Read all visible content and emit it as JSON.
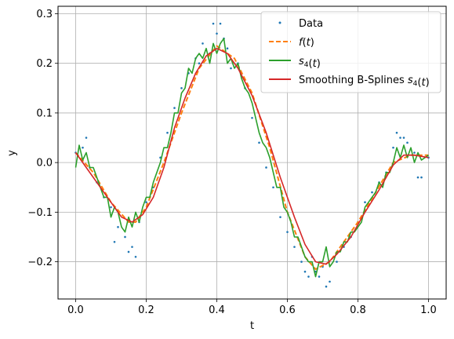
{
  "chart_data": {
    "type": "line",
    "xlabel": "t",
    "ylabel": "y",
    "xlim": [
      -0.05,
      1.05
    ],
    "ylim": [
      -0.275,
      0.315
    ],
    "grid": true,
    "legend_position": "top-right",
    "xticks": [
      0.0,
      0.2,
      0.4,
      0.6,
      0.8,
      1.0
    ],
    "xtick_labels": [
      "0.0",
      "0.2",
      "0.4",
      "0.6",
      "0.8",
      "1.0"
    ],
    "yticks": [
      -0.2,
      -0.1,
      0.0,
      0.1,
      0.2,
      0.3
    ],
    "ytick_labels": [
      "−0.2",
      "−0.1",
      "0.0",
      "0.1",
      "0.2",
      "0.3"
    ],
    "series": [
      {
        "name": "Data",
        "style": "points",
        "color": "#1f77b4",
        "x": [
          0.0,
          0.02,
          0.04,
          0.06,
          0.08,
          0.1,
          0.12,
          0.14,
          0.16,
          0.18,
          0.2,
          0.22,
          0.24,
          0.26,
          0.28,
          0.3,
          0.32,
          0.34,
          0.36,
          0.38,
          0.4,
          0.42,
          0.44,
          0.46,
          0.48,
          0.5,
          0.52,
          0.54,
          0.56,
          0.58,
          0.6,
          0.62,
          0.64,
          0.66,
          0.68,
          0.7,
          0.72,
          0.74,
          0.76,
          0.78,
          0.8,
          0.82,
          0.84,
          0.86,
          0.88,
          0.9,
          0.92,
          0.94,
          0.96,
          0.98,
          1.0,
          0.03,
          0.11,
          0.15,
          0.17,
          0.35,
          0.39,
          0.41,
          0.43,
          0.65,
          0.67,
          0.69,
          0.71,
          0.91,
          0.93,
          0.97
        ],
        "y": [
          0.02,
          0.03,
          -0.01,
          -0.04,
          -0.07,
          -0.09,
          -0.13,
          -0.15,
          -0.17,
          -0.12,
          -0.08,
          -0.05,
          0.01,
          0.06,
          0.11,
          0.15,
          0.18,
          0.21,
          0.24,
          0.22,
          0.26,
          0.25,
          0.19,
          0.2,
          0.15,
          0.09,
          0.04,
          -0.01,
          -0.05,
          -0.11,
          -0.14,
          -0.17,
          -0.2,
          -0.23,
          -0.22,
          -0.21,
          -0.24,
          -0.2,
          -0.17,
          -0.15,
          -0.12,
          -0.08,
          -0.06,
          -0.04,
          -0.02,
          0.03,
          0.05,
          0.04,
          0.02,
          -0.03,
          0.01,
          0.05,
          -0.16,
          -0.18,
          -0.19,
          0.2,
          0.28,
          0.28,
          0.23,
          -0.22,
          -0.19,
          -0.23,
          -0.25,
          0.06,
          0.05,
          -0.03
        ]
      },
      {
        "name": "$f(t)$",
        "style": "dashed",
        "color": "#ff7f0e",
        "x": [
          0.0,
          0.05,
          0.1,
          0.15,
          0.17,
          0.2,
          0.25,
          0.3,
          0.35,
          0.4,
          0.45,
          0.5,
          0.55,
          0.6,
          0.65,
          0.68,
          0.72,
          0.75,
          0.8,
          0.85,
          0.9,
          0.95,
          1.0
        ],
        "y": [
          0.02,
          -0.02,
          -0.08,
          -0.12,
          -0.12,
          -0.09,
          0.0,
          0.1,
          0.19,
          0.235,
          0.21,
          0.14,
          0.03,
          -0.1,
          -0.19,
          -0.215,
          -0.2,
          -0.17,
          -0.12,
          -0.06,
          0.0,
          0.015,
          0.015
        ]
      },
      {
        "name": "$s_4(t)$",
        "style": "solid",
        "color": "#2ca02c",
        "x": [
          0.0,
          0.01,
          0.02,
          0.03,
          0.04,
          0.05,
          0.06,
          0.07,
          0.08,
          0.09,
          0.1,
          0.11,
          0.12,
          0.13,
          0.14,
          0.15,
          0.16,
          0.17,
          0.18,
          0.19,
          0.2,
          0.21,
          0.22,
          0.23,
          0.24,
          0.25,
          0.26,
          0.27,
          0.28,
          0.29,
          0.3,
          0.31,
          0.32,
          0.33,
          0.34,
          0.35,
          0.36,
          0.37,
          0.38,
          0.39,
          0.4,
          0.41,
          0.42,
          0.43,
          0.44,
          0.45,
          0.46,
          0.47,
          0.48,
          0.49,
          0.5,
          0.51,
          0.52,
          0.53,
          0.54,
          0.55,
          0.56,
          0.57,
          0.58,
          0.59,
          0.6,
          0.61,
          0.62,
          0.63,
          0.64,
          0.65,
          0.66,
          0.67,
          0.68,
          0.69,
          0.7,
          0.71,
          0.72,
          0.73,
          0.74,
          0.75,
          0.76,
          0.77,
          0.78,
          0.79,
          0.8,
          0.81,
          0.82,
          0.83,
          0.84,
          0.85,
          0.86,
          0.87,
          0.88,
          0.89,
          0.9,
          0.91,
          0.92,
          0.93,
          0.94,
          0.95,
          0.96,
          0.97,
          0.98,
          0.99,
          1.0
        ],
        "y": [
          -0.01,
          0.035,
          0.005,
          0.02,
          -0.01,
          -0.01,
          -0.03,
          -0.05,
          -0.07,
          -0.07,
          -0.11,
          -0.09,
          -0.1,
          -0.13,
          -0.14,
          -0.11,
          -0.13,
          -0.1,
          -0.12,
          -0.09,
          -0.07,
          -0.07,
          -0.04,
          -0.02,
          0.0,
          0.03,
          0.03,
          0.06,
          0.1,
          0.1,
          0.14,
          0.15,
          0.19,
          0.18,
          0.21,
          0.22,
          0.21,
          0.23,
          0.2,
          0.24,
          0.22,
          0.24,
          0.25,
          0.2,
          0.21,
          0.19,
          0.2,
          0.17,
          0.15,
          0.14,
          0.12,
          0.09,
          0.06,
          0.04,
          0.03,
          0.01,
          -0.02,
          -0.05,
          -0.05,
          -0.09,
          -0.1,
          -0.12,
          -0.15,
          -0.15,
          -0.17,
          -0.19,
          -0.2,
          -0.2,
          -0.23,
          -0.2,
          -0.2,
          -0.17,
          -0.21,
          -0.2,
          -0.18,
          -0.18,
          -0.16,
          -0.16,
          -0.14,
          -0.14,
          -0.13,
          -0.12,
          -0.09,
          -0.08,
          -0.07,
          -0.06,
          -0.04,
          -0.05,
          -0.02,
          -0.02,
          0.0,
          0.03,
          0.01,
          0.035,
          0.01,
          0.03,
          0.0,
          0.02,
          0.005,
          0.01,
          0.015
        ]
      },
      {
        "name": "Smoothing B-Splines $s_4(t)$",
        "style": "solid",
        "color": "#d62728",
        "x": [
          0.0,
          0.05,
          0.1,
          0.13,
          0.16,
          0.19,
          0.22,
          0.25,
          0.28,
          0.31,
          0.34,
          0.37,
          0.4,
          0.43,
          0.46,
          0.5,
          0.54,
          0.58,
          0.62,
          0.65,
          0.68,
          0.71,
          0.74,
          0.78,
          0.82,
          0.86,
          0.9,
          0.93,
          0.96,
          1.0
        ],
        "y": [
          0.02,
          -0.03,
          -0.08,
          -0.11,
          -0.12,
          -0.105,
          -0.07,
          -0.01,
          0.07,
          0.13,
          0.18,
          0.215,
          0.23,
          0.22,
          0.19,
          0.135,
          0.06,
          -0.03,
          -0.11,
          -0.165,
          -0.2,
          -0.205,
          -0.185,
          -0.15,
          -0.1,
          -0.055,
          -0.005,
          0.015,
          0.015,
          0.01
        ]
      }
    ]
  }
}
